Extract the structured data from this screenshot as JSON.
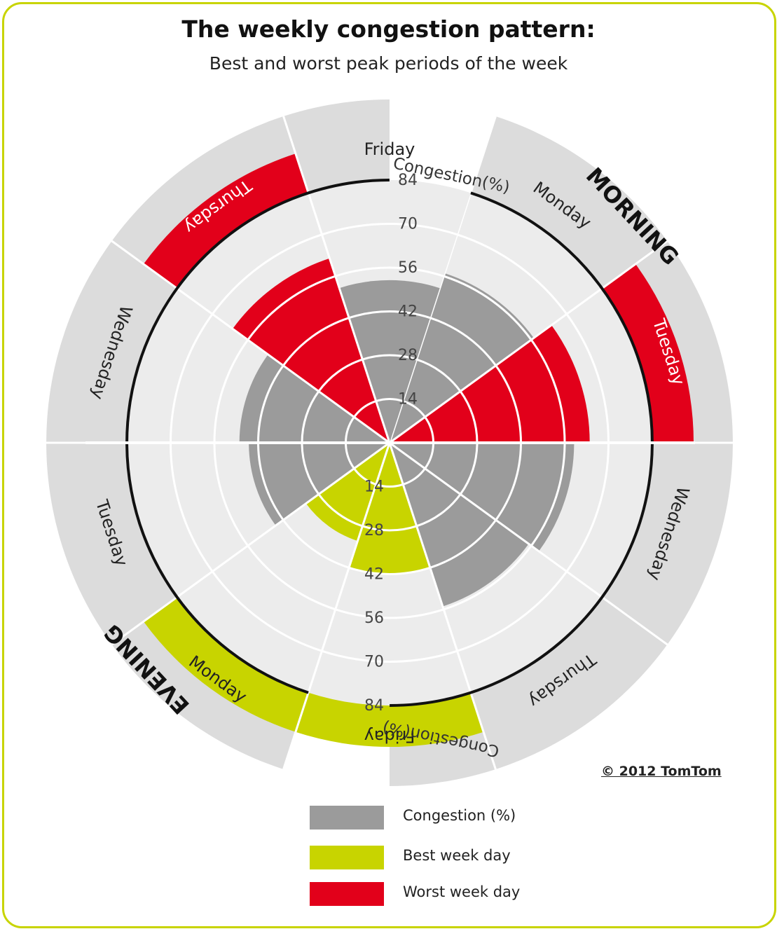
{
  "title": "The weekly congestion pattern:",
  "subtitle": "Best and worst peak periods of the week",
  "copyright": "© 2012 TomTom",
  "colors": {
    "congestion": "#9b9b9b",
    "best": "#c8d400",
    "worst": "#e2001a",
    "background_band": "#dcdcdc",
    "light_band": "#ececec",
    "frame": "#c8d400"
  },
  "legend": [
    {
      "label": "Congestion (%)",
      "color": "#9b9b9b"
    },
    {
      "label": "Best week day",
      "color": "#c8d400"
    },
    {
      "label": "Worst week day",
      "color": "#e2001a"
    }
  ],
  "chart_data": {
    "type": "radial-bar",
    "radial_axis_label": "Congestion(%)",
    "radial_ticks": [
      14,
      28,
      42,
      56,
      70,
      84
    ],
    "radial_max": 84,
    "groups": [
      {
        "name": "MORNING",
        "days": [
          {
            "day": "Monday",
            "value": 57,
            "category": "Congestion (%)"
          },
          {
            "day": "Tuesday",
            "value": 64,
            "category": "Worst week day"
          },
          {
            "day": "Wednesday",
            "value": 59,
            "category": "Congestion (%)"
          },
          {
            "day": "Thursday",
            "value": 55,
            "category": "Congestion (%)"
          },
          {
            "day": "Friday",
            "value": 42,
            "category": "Best week day"
          }
        ]
      },
      {
        "name": "EVENING",
        "days": [
          {
            "day": "Monday",
            "value": 33,
            "category": "Best week day"
          },
          {
            "day": "Tuesday",
            "value": 45,
            "category": "Congestion (%)"
          },
          {
            "day": "Wednesday",
            "value": 48,
            "category": "Congestion (%)"
          },
          {
            "day": "Thursday",
            "value": 62,
            "category": "Worst week day"
          },
          {
            "day": "Friday",
            "value": 52,
            "category": "Congestion (%)"
          }
        ]
      }
    ]
  }
}
